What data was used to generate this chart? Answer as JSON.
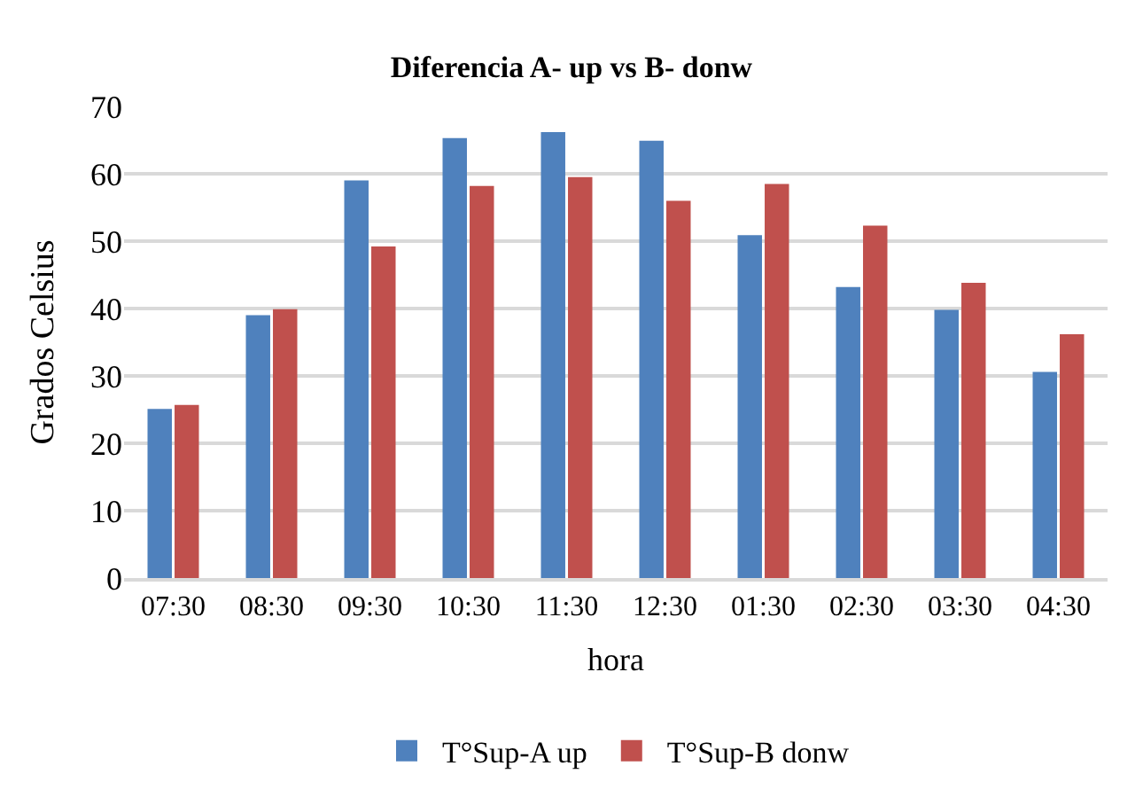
{
  "chart_data": {
    "type": "bar",
    "title": "Diferencia A- up vs B- donw",
    "xlabel": "hora",
    "ylabel": "Grados Celsius",
    "categories": [
      "07:30",
      "08:30",
      "09:30",
      "10:30",
      "11:30",
      "12:30",
      "01:30",
      "02:30",
      "03:30",
      "04:30"
    ],
    "series": [
      {
        "name": "T°Sup-A up",
        "color": "#4f81bd",
        "values": [
          25.1,
          39,
          59,
          65.3,
          66.2,
          64.9,
          50.9,
          43.2,
          39.8,
          30.6
        ]
      },
      {
        "name": "T°Sup-B donw",
        "color": "#c0504d",
        "values": [
          25.7,
          39.9,
          49.2,
          58.2,
          59.5,
          56,
          58.5,
          52.3,
          43.8,
          36.2
        ]
      }
    ],
    "ylim": [
      0,
      70
    ],
    "yticks": [
      0,
      10,
      20,
      30,
      40,
      50,
      60,
      70
    ],
    "grid": "y",
    "legend": "bottom"
  }
}
